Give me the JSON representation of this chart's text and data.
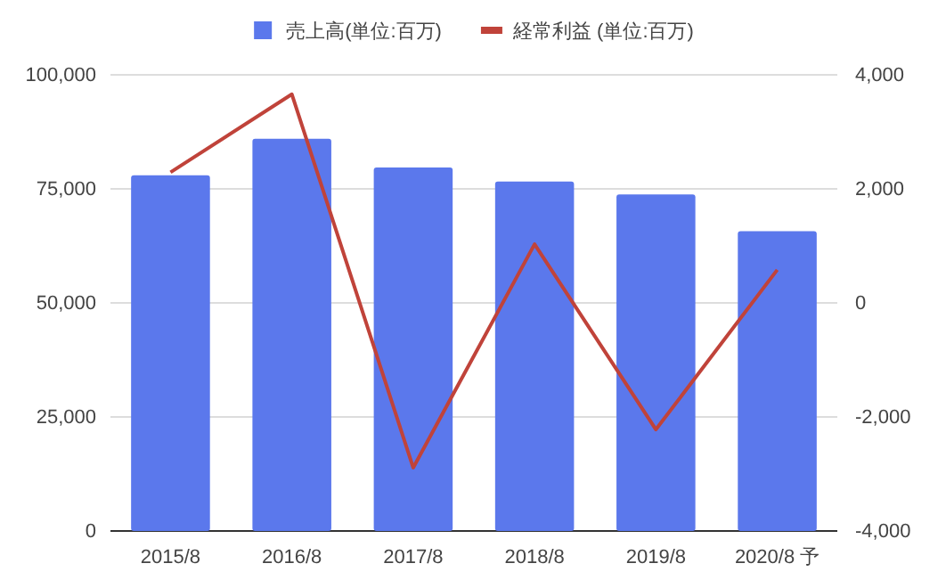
{
  "chart_data": {
    "type": "bar",
    "categories": [
      "2015/8",
      "2016/8",
      "2017/8",
      "2018/8",
      "2019/8",
      "2020/8 予"
    ],
    "series": [
      {
        "name": "売上高(単位:百万)",
        "color": "#5b78ec",
        "values": [
          78000,
          86000,
          79700,
          76600,
          73800,
          65700
        ]
      },
      {
        "name": "経常利益 (単位:百万)",
        "color": "#c0433a",
        "type": "line",
        "axis": "y2",
        "values": [
          2290,
          3660,
          -2890,
          1030,
          -2220,
          580
        ]
      }
    ],
    "ylim": [
      0,
      100000
    ],
    "yticks": [
      {
        "value": 0,
        "label": "0"
      },
      {
        "value": 25000,
        "label": "25,000"
      },
      {
        "value": 50000,
        "label": "50,000"
      },
      {
        "value": 75000,
        "label": "75,000"
      },
      {
        "value": 100000,
        "label": "100,000"
      }
    ],
    "y2lim": [
      -4000,
      4000
    ],
    "y2ticks": [
      {
        "value": -4000,
        "label": "-4,000"
      },
      {
        "value": -2000,
        "label": "-2,000"
      },
      0,
      {
        "value": 2000,
        "label": "2,000"
      },
      {
        "value": 4000,
        "label": "4,000"
      }
    ],
    "grid": "y",
    "legend": "top",
    "marker": "none"
  }
}
